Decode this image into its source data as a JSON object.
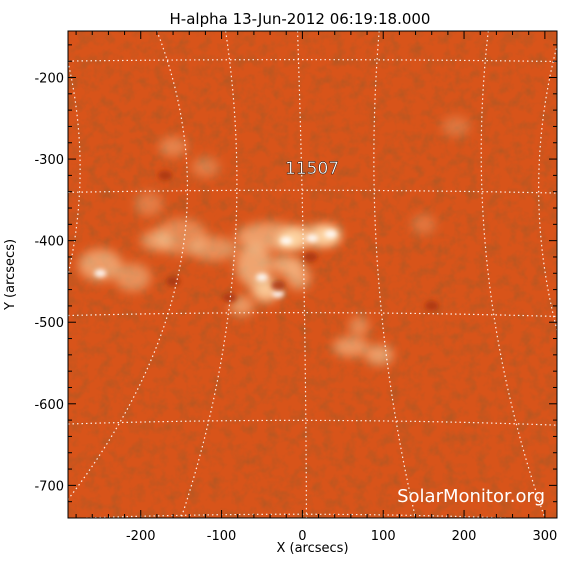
{
  "title": "H-alpha 13-Jun-2012 06:19:18.000",
  "x_axis": {
    "label": "X (arcsecs)",
    "range": [
      -290,
      315
    ],
    "ticks": [
      -200,
      -100,
      0,
      100,
      200,
      300
    ],
    "tick_labels": [
      "-200",
      "-100",
      "0",
      "100",
      "200",
      "300"
    ]
  },
  "y_axis": {
    "label": "Y (arcsecs)",
    "range": [
      -740,
      -143
    ],
    "ticks": [
      -200,
      -300,
      -400,
      -500,
      -600,
      -700
    ],
    "tick_labels": [
      "-200",
      "-300",
      "-400",
      "-500",
      "-600",
      "-700"
    ]
  },
  "region": {
    "label": "11507",
    "x": 12,
    "y": -318
  },
  "watermark": "SolarMonitor.org",
  "colors": {
    "sun_base": "#d8541a",
    "sun_dark": "#a8320c",
    "plage": "#ffd9a8",
    "grid": "#ffffff"
  }
}
